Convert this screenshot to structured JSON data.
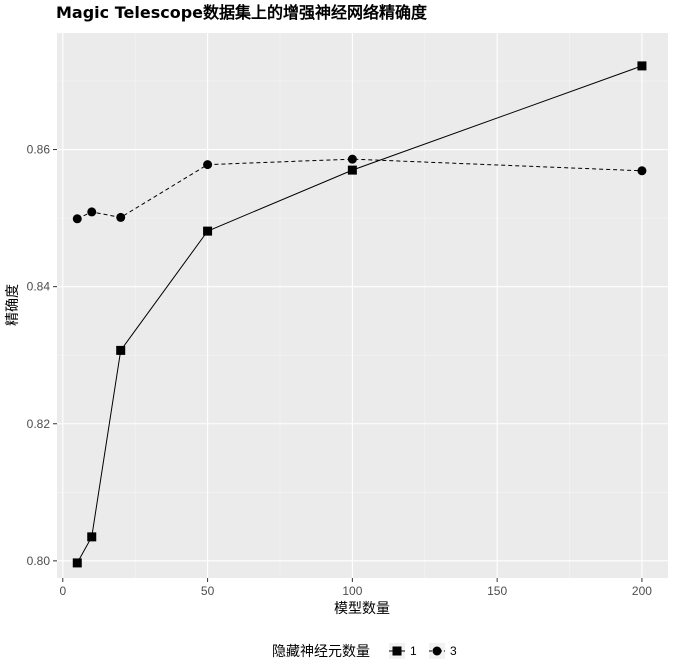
{
  "chart_data": {
    "type": "line",
    "title": "Magic Telescope数据集上的增强神经网络精确度",
    "xlabel": "模型数量",
    "ylabel": "精确度",
    "xlim": [
      -2,
      209
    ],
    "ylim": [
      0.7975,
      0.877
    ],
    "x_ticks": [
      0,
      50,
      100,
      150,
      200
    ],
    "x_tick_labels": [
      "0",
      "50",
      "100",
      "150",
      "200"
    ],
    "y_ticks": [
      0.8,
      0.82,
      0.84,
      0.86
    ],
    "y_tick_labels": [
      "0.80",
      "0.82",
      "0.84",
      "0.86"
    ],
    "grid": true,
    "legend": {
      "title": "隐藏神经元数量",
      "position": "bottom"
    },
    "series": [
      {
        "name": "1",
        "marker": "square",
        "line_style": "solid",
        "x": [
          5,
          10,
          20,
          50,
          100,
          200
        ],
        "y": [
          0.7997,
          0.8035,
          0.8307,
          0.8481,
          0.857,
          0.8722
        ]
      },
      {
        "name": "3",
        "marker": "circle",
        "line_style": "dashed",
        "x": [
          5,
          10,
          20,
          50,
          100,
          200
        ],
        "y": [
          0.8499,
          0.8509,
          0.8501,
          0.8578,
          0.8586,
          0.8569
        ]
      }
    ],
    "colors": {
      "panel": "#ebebeb",
      "grid_major": "#ffffff",
      "grid_minor": "#f5f5f5",
      "series": "#000000",
      "tick": "#4d4d4d"
    }
  }
}
